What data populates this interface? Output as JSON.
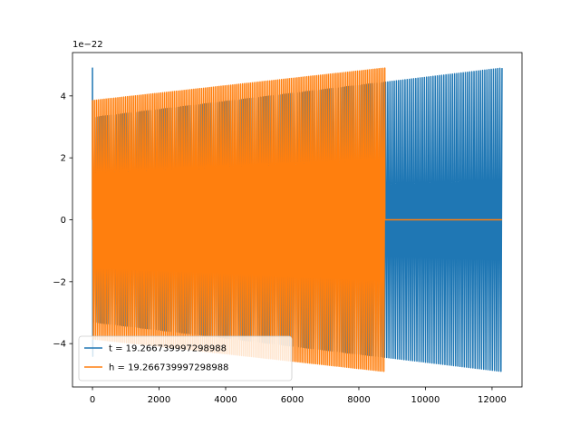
{
  "chart_data": {
    "type": "line",
    "title": "",
    "xlabel": "",
    "ylabel": "",
    "offset_text": "1e−22",
    "xlim": [
      -600,
      12900
    ],
    "ylim": [
      -5.4,
      5.4
    ],
    "y_scale_exponent": -22,
    "xticks": [
      0,
      2000,
      4000,
      6000,
      8000,
      10000,
      12000
    ],
    "xtick_labels": [
      "0",
      "2000",
      "4000",
      "6000",
      "8000",
      "10000",
      "12000"
    ],
    "yticks": [
      -4,
      -2,
      0,
      2,
      4
    ],
    "ytick_labels": [
      "−4",
      "−2",
      "0",
      "2",
      "4"
    ],
    "grid": false,
    "legend_position": "lower-left",
    "series": [
      {
        "name": "t = 19.266739997298988",
        "color": "#1f77b4",
        "kind": "oscillation",
        "x_start": 0,
        "x_end": 12300,
        "spike_amplitude": 4.9,
        "amplitude_start": 3.3,
        "amplitude_end": 4.9,
        "cycles": 190
      },
      {
        "name": "h = 19.266739997298988",
        "color": "#ff7f0e",
        "kind": "oscillation",
        "x_start": 0,
        "x_end": 8780,
        "amplitude_start": 3.85,
        "amplitude_end": 4.9,
        "cycles": 150,
        "tail_x_end": 12300,
        "tail_value": 0
      }
    ]
  }
}
